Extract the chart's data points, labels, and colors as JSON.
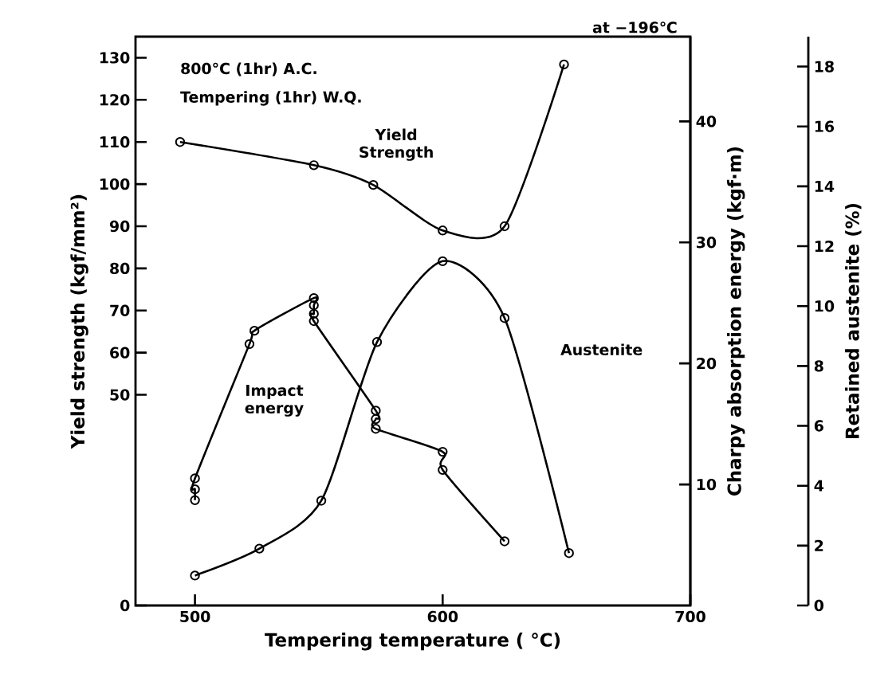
{
  "chart_data": {
    "type": "line",
    "xlabel": "Tempering temperature ( °C)",
    "ylabel": "Yield strength (kgf/mm²)",
    "y2label": "Charpy absorption energy (kgf·m)",
    "y3label": "Retained austenite (%)",
    "annotations": [
      "800°C (1hr) A.C.",
      "Tempering (1hr) W.Q.",
      "at −196℃"
    ],
    "xlim": [
      476,
      700
    ],
    "xticks": [
      500,
      600,
      700
    ],
    "ylim": [
      0,
      135
    ],
    "yticks": [
      0,
      50,
      60,
      70,
      80,
      90,
      100,
      110,
      120,
      130
    ],
    "y2lim": [
      0,
      47
    ],
    "y2ticks": [
      10,
      20,
      30,
      40
    ],
    "y3lim": [
      0,
      19
    ],
    "y3ticks": [
      0,
      2,
      4,
      6,
      8,
      10,
      12,
      14,
      16,
      18
    ],
    "marker": "circle",
    "line_style": "solid",
    "series": [
      {
        "name": "Yield Strength",
        "axis": "y",
        "color": "#000000",
        "x": [
          494,
          548,
          572,
          600,
          625,
          649
        ],
        "values": [
          110,
          104.5,
          99.8,
          89,
          90,
          128.4
        ]
      },
      {
        "name": "Impact energy",
        "axis": "y2",
        "color": "#000000",
        "x": [
          500,
          500,
          500,
          522,
          524,
          548,
          548,
          548,
          548,
          573,
          573,
          573,
          600,
          600,
          625
        ],
        "values": [
          8.7,
          9.6,
          10.5,
          21.6,
          22.7,
          25.4,
          24.8,
          24.1,
          23.5,
          16.1,
          15.4,
          14.6,
          12.7,
          11.2,
          5.3
        ]
      },
      {
        "name": "Austenite",
        "axis": "y3",
        "color": "#000000",
        "x": [
          500,
          526,
          551,
          573.5,
          600,
          625,
          651
        ],
        "values": [
          1.0,
          1.9,
          3.5,
          8.8,
          11.5,
          9.6,
          1.75
        ]
      }
    ]
  }
}
